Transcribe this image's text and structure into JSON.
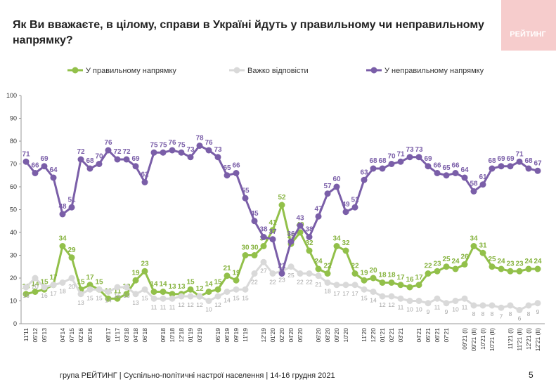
{
  "logo": "РЕЙТИНГ",
  "footer": "група РЕЙТИНГ | Суспільно-політичні настрої населення | 14-16 грудня 2021",
  "page_number": "5",
  "chart_data": {
    "type": "line",
    "title": "Як Ви вважаєте, в цілому, справи в Україні йдуть у правильному чи неправильному напрямку?",
    "categories": [
      "11'11",
      "05'12",
      "05'13",
      null,
      "04'14",
      "07'15",
      "02'16",
      "05'16",
      null,
      "08'17",
      "11'17",
      "03'18",
      "04'18",
      "06'18",
      null,
      "09'18",
      "10'18",
      "12'18",
      "01'19",
      "03'19",
      null,
      "05'19",
      "06'19",
      "09'19",
      "11'19",
      null,
      "12'19",
      "01'20",
      "02'20",
      "04'20",
      "05'20",
      null,
      "06'20",
      "08'20",
      "09'20",
      "10'20",
      null,
      "11'20",
      "12'20",
      "01'21",
      "02'21",
      "03'21",
      null,
      "04'21",
      "05'21",
      "06'21",
      "07'21",
      null,
      "09'21 (I)",
      "09'21 (II)",
      "10'21 (I)",
      "10'21 (II)",
      null,
      "11'21 (I)",
      "11'21 (II)",
      "12'21 (I)",
      "12'21 (II)"
    ],
    "series": [
      {
        "name": "У правильному напрямку",
        "color": "#92c04a",
        "values": [
          13,
          14,
          15,
          17,
          34,
          29,
          15,
          17,
          15,
          11,
          11,
          13,
          19,
          23,
          14,
          14,
          13,
          13,
          15,
          12,
          14,
          15,
          21,
          19,
          30,
          30,
          34,
          41,
          52,
          35,
          40,
          32,
          24,
          22,
          34,
          32,
          22,
          19,
          20,
          18,
          18,
          17,
          16,
          17,
          22,
          23,
          25,
          24,
          26,
          34,
          31,
          25,
          24,
          23,
          23,
          24,
          24
        ]
      },
      {
        "name": "Важко відповісти",
        "color": "#d9d9d9",
        "values": [
          16,
          20,
          16,
          17,
          18,
          20,
          13,
          15,
          15,
          14,
          16,
          16,
          13,
          15,
          11,
          11,
          11,
          12,
          12,
          12,
          10,
          12,
          14,
          15,
          15,
          22,
          27,
          22,
          23,
          25,
          22,
          22,
          21,
          18,
          17,
          17,
          17,
          15,
          14,
          12,
          12,
          11,
          10,
          10,
          9,
          11,
          9,
          10,
          11,
          8,
          8,
          8,
          7,
          8,
          6,
          8,
          9
        ]
      },
      {
        "name": "У неправильному напрямку",
        "color": "#7a5ea8",
        "values": [
          71,
          66,
          69,
          64,
          48,
          51,
          72,
          68,
          70,
          76,
          72,
          72,
          69,
          62,
          75,
          75,
          76,
          75,
          73,
          78,
          76,
          73,
          65,
          66,
          55,
          45,
          38,
          37,
          22,
          36,
          43,
          38,
          47,
          57,
          60,
          49,
          51,
          63,
          68,
          68,
          70,
          71,
          73,
          73,
          69,
          66,
          65,
          66,
          64,
          58,
          61,
          68,
          69,
          69,
          71,
          68,
          67
        ]
      }
    ],
    "ylim": [
      0,
      100
    ],
    "yticks": [
      0,
      10,
      20,
      30,
      40,
      50,
      60,
      70,
      80,
      90,
      100
    ],
    "grid": false,
    "legend": "top"
  }
}
